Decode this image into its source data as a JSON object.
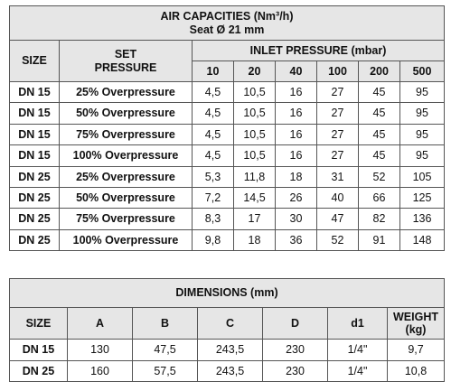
{
  "air": {
    "title": "AIR CAPACITIES (Nm³/h)",
    "subtitle": "Seat Ø 21 mm",
    "size_header": "SIZE",
    "set_header_1": "SET",
    "set_header_2": "PRESSURE",
    "inlet_header": "INLET PRESSURE (mbar)",
    "pressures": [
      "10",
      "20",
      "40",
      "100",
      "200",
      "500"
    ],
    "rows": [
      {
        "size": "DN 15",
        "set": "25% Overpressure",
        "v": [
          "4,5",
          "10,5",
          "16",
          "27",
          "45",
          "95"
        ]
      },
      {
        "size": "DN 15",
        "set": "50% Overpressure",
        "v": [
          "4,5",
          "10,5",
          "16",
          "27",
          "45",
          "95"
        ]
      },
      {
        "size": "DN 15",
        "set": "75% Overpressure",
        "v": [
          "4,5",
          "10,5",
          "16",
          "27",
          "45",
          "95"
        ]
      },
      {
        "size": "DN 15",
        "set": "100% Overpressure",
        "v": [
          "4,5",
          "10,5",
          "16",
          "27",
          "45",
          "95"
        ]
      },
      {
        "size": "DN 25",
        "set": "25% Overpressure",
        "v": [
          "5,3",
          "11,8",
          "18",
          "31",
          "52",
          "105"
        ]
      },
      {
        "size": "DN 25",
        "set": "50% Overpressure",
        "v": [
          "7,2",
          "14,5",
          "26",
          "40",
          "66",
          "125"
        ]
      },
      {
        "size": "DN 25",
        "set": "75% Overpressure",
        "v": [
          "8,3",
          "17",
          "30",
          "47",
          "82",
          "136"
        ]
      },
      {
        "size": "DN 25",
        "set": "100% Overpressure",
        "v": [
          "9,8",
          "18",
          "36",
          "52",
          "91",
          "148"
        ]
      }
    ]
  },
  "dim": {
    "title": "DIMENSIONS (mm)",
    "headers": [
      "SIZE",
      "A",
      "B",
      "C",
      "D",
      "d1"
    ],
    "weight_header_1": "WEIGHT",
    "weight_header_2": "(kg)",
    "rows": [
      {
        "size": "DN 15",
        "v": [
          "130",
          "47,5",
          "243,5",
          "230",
          "1/4\"",
          "9,7"
        ]
      },
      {
        "size": "DN 25",
        "v": [
          "160",
          "57,5",
          "243,5",
          "230",
          "1/4\"",
          "10,8"
        ]
      }
    ]
  }
}
